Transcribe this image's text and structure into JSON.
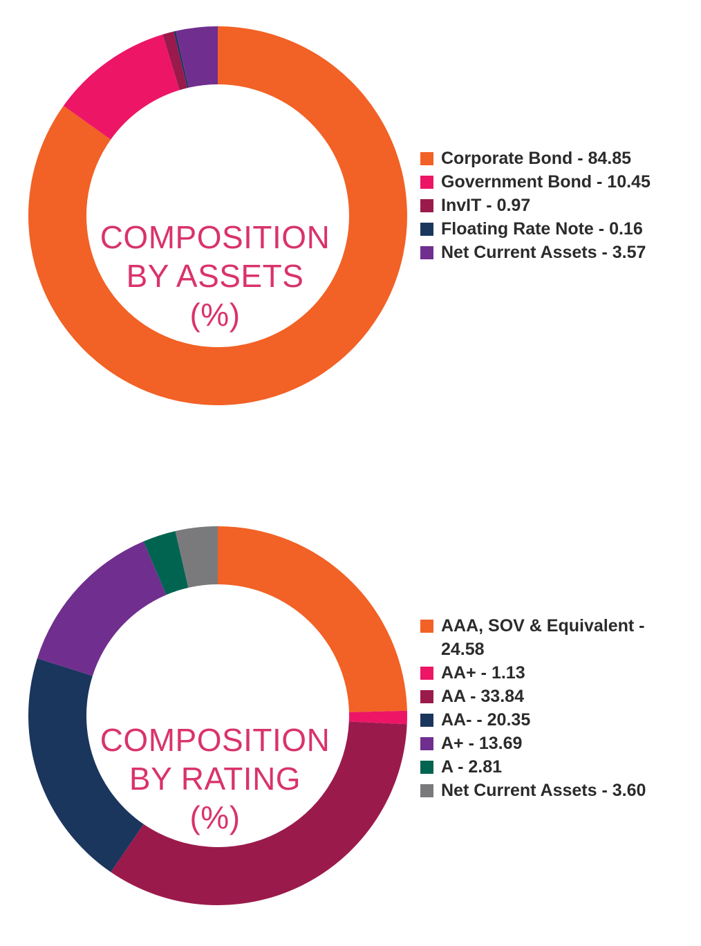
{
  "chart_data": [
    {
      "type": "pie",
      "title": "COMPOSITION BY ASSETS (%)",
      "title_lines": [
        "COMPOSITION",
        "BY ASSETS",
        "(%)"
      ],
      "legend_placement": "right",
      "slices": [
        {
          "label": "Corporate Bond",
          "value": 84.85,
          "value_text": "84.85",
          "color": "#f26125"
        },
        {
          "label": "Government Bond",
          "value": 10.45,
          "value_text": "10.45",
          "color": "#ed1566"
        },
        {
          "label": "InvIT",
          "value": 0.97,
          "value_text": "0.97",
          "color": "#9b1a4c"
        },
        {
          "label": "Floating Rate Note",
          "value": 0.16,
          "value_text": "0.16",
          "color": "#1b365d"
        },
        {
          "label": "Net Current Assets",
          "value": 3.57,
          "value_text": "3.57",
          "color": "#702f8f"
        }
      ]
    },
    {
      "type": "pie",
      "title": "COMPOSITION BY RATING (%)",
      "title_lines": [
        "COMPOSITION",
        "BY RATING",
        "(%)"
      ],
      "legend_placement": "right",
      "slices": [
        {
          "label": "AAA, SOV & Equivalent",
          "value": 24.58,
          "value_text": "24.58",
          "color": "#f26125"
        },
        {
          "label": "AA+",
          "value": 1.13,
          "value_text": "1.13",
          "color": "#ed1566"
        },
        {
          "label": "AA",
          "value": 33.84,
          "value_text": "33.84",
          "color": "#9b1a4c"
        },
        {
          "label": "AA-",
          "value": 20.35,
          "value_text": "20.35",
          "color": "#1b365d"
        },
        {
          "label": "A+",
          "value": 13.69,
          "value_text": "13.69",
          "color": "#702f8f"
        },
        {
          "label": "A",
          "value": 2.81,
          "value_text": "2.81",
          "color": "#006450"
        },
        {
          "label": "Net Current Assets",
          "value": 3.6,
          "value_text": "3.60",
          "color": "#7a7a7c"
        }
      ]
    }
  ]
}
